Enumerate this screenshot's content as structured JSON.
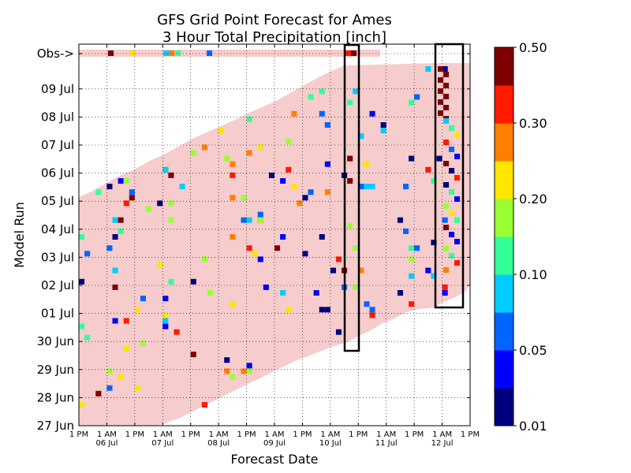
{
  "chart_data": {
    "type": "heatmap",
    "title": "GFS Grid Point Forecast for Ames",
    "subtitle": "3 Hour Total Precipitation [inch]",
    "xlabel": "Forecast Date",
    "ylabel": "Model Run",
    "y_ticks": [
      "27 Jun",
      "28 Jun",
      "29 Jun",
      "30 Jun",
      "01 Jul",
      "02 Jul",
      "03 Jul",
      "04 Jul",
      "05 Jul",
      "06 Jul",
      "07 Jul",
      "08 Jul",
      "09 Jul",
      "Obs->"
    ],
    "x_ticks_time": [
      "1 PM",
      "1 AM",
      "1 PM",
      "1 AM",
      "1 PM",
      "1 AM",
      "1 PM",
      "1 AM",
      "1 PM",
      "1 AM",
      "1 PM",
      "1 AM",
      "1 PM",
      "1 AM",
      "1 PM"
    ],
    "x_ticks_date": [
      {
        "after_index": 1,
        "label": "06 Jul"
      },
      {
        "after_index": 3,
        "label": "07 Jul"
      },
      {
        "after_index": 5,
        "label": "08 Jul"
      },
      {
        "after_index": 7,
        "label": "09 Jul"
      },
      {
        "after_index": 9,
        "label": "10 Jul"
      },
      {
        "after_index": 11,
        "label": "11 Jul"
      },
      {
        "after_index": 13,
        "label": "12 Jul"
      }
    ],
    "colorbar": {
      "levels": [
        0.01,
        0.05,
        0.1,
        0.2,
        0.3,
        0.5
      ],
      "level_labels": [
        "0.01",
        "0.05",
        "0.10",
        "0.20",
        "0.30",
        "0.50"
      ],
      "colors": [
        "#00007f",
        "#0000ff",
        "#0066ff",
        "#00ccff",
        "#33ff99",
        "#99ff33",
        "#ffe500",
        "#ff7f00",
        "#ff1a00",
        "#7f0000"
      ]
    },
    "no_precip_color": "#f6cccc",
    "highlight_boxes": [
      {
        "x_from": "10 Jul ~7 AM",
        "x_to": "10 Jul ~1 PM"
      },
      {
        "x_from": "11 Jul ~7 PM",
        "x_to": "12 Jul ~7 AM"
      }
    ],
    "precip_cells": [
      {
        "x": 1,
        "y": 0,
        "c": 0
      },
      {
        "x": 3,
        "y": 1,
        "c": 2
      },
      {
        "x": 5,
        "y": 1,
        "c": 8
      },
      {
        "x": 2,
        "y": 2,
        "c": 9
      },
      {
        "x": 4,
        "y": 3,
        "c": 3
      },
      {
        "x": 6,
        "y": 2,
        "c": 1
      },
      {
        "x": 8,
        "y": 4,
        "c": 5
      },
      {
        "x": 9,
        "y": 5,
        "c": 6
      },
      {
        "x": 11,
        "y": 6,
        "c": 2
      }
    ]
  }
}
